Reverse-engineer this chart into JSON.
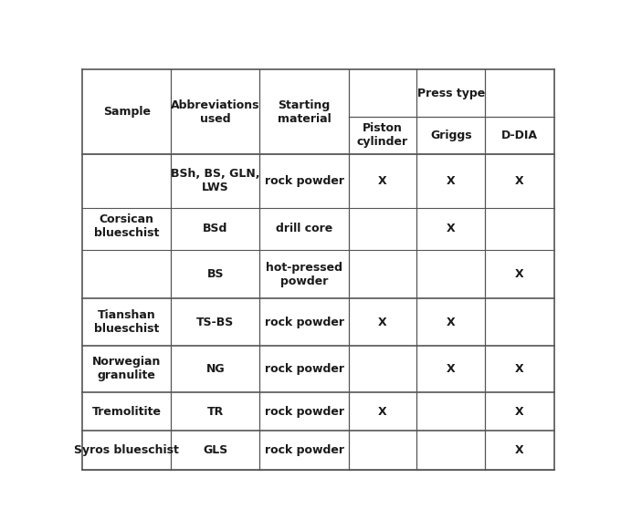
{
  "figsize": [
    6.8,
    5.81
  ],
  "dpi": 100,
  "background_color": "#ffffff",
  "font_color": "#1a1a1a",
  "font_size": 9.0,
  "font_weight": "bold",
  "rows": [
    {
      "sample": "Corsican\nblueschist",
      "sample_row_span": 3,
      "sub_rows": [
        {
          "abbrev": "BSh, BS, GLN,\nLWS",
          "material": "rock powder",
          "piston": "X",
          "griggs": "X",
          "ddia": "X"
        },
        {
          "abbrev": "BSd",
          "material": "drill core",
          "piston": "",
          "griggs": "X",
          "ddia": ""
        },
        {
          "abbrev": "BS",
          "material": "hot-pressed\npowder",
          "piston": "",
          "griggs": "",
          "ddia": "X"
        }
      ]
    },
    {
      "sample": "Tianshan\nblueschist",
      "sample_row_span": 1,
      "sub_rows": [
        {
          "abbrev": "TS-BS",
          "material": "rock powder",
          "piston": "X",
          "griggs": "X",
          "ddia": ""
        }
      ]
    },
    {
      "sample": "Norwegian\ngranulite",
      "sample_row_span": 1,
      "sub_rows": [
        {
          "abbrev": "NG",
          "material": "rock powder",
          "piston": "",
          "griggs": "X",
          "ddia": "X"
        }
      ]
    },
    {
      "sample": "Tremolitite",
      "sample_row_span": 1,
      "sub_rows": [
        {
          "abbrev": "TR",
          "material": "rock powder",
          "piston": "X",
          "griggs": "",
          "ddia": "X"
        }
      ]
    },
    {
      "sample": "Syros blueschist",
      "sample_row_span": 1,
      "sub_rows": [
        {
          "abbrev": "GLS",
          "material": "rock powder",
          "piston": "",
          "griggs": "",
          "ddia": "X"
        }
      ]
    }
  ]
}
